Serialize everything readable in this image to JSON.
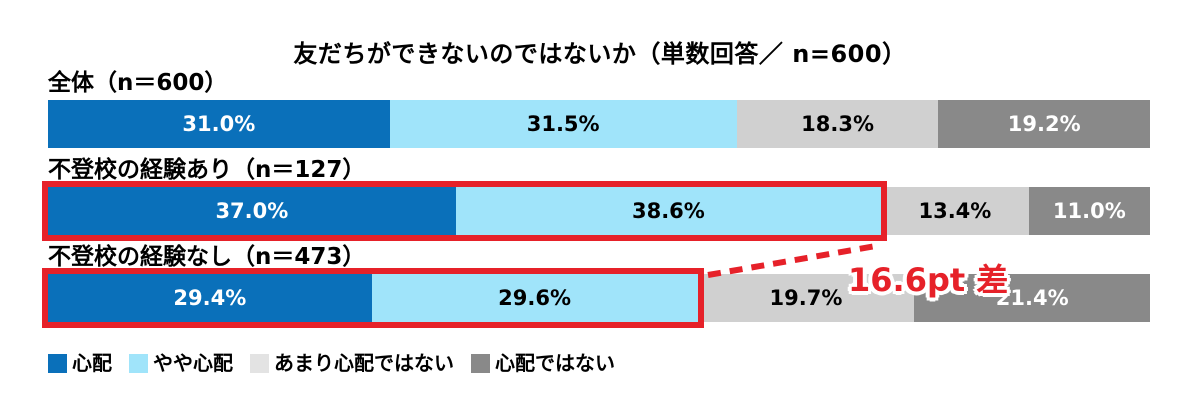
{
  "title": "友だちができないのではないか（単数回答／ n=600）",
  "chart_data": {
    "type": "bar",
    "orientation": "horizontal-stacked",
    "unit": "%",
    "xlim": [
      0,
      100
    ],
    "grid": false,
    "legend_position": "bottom",
    "series_labels": [
      "心配",
      "やや心配",
      "あまり心配ではない",
      "心配ではない"
    ],
    "segment_colors": [
      "#0a70ba",
      "#a0e4fa",
      "#d0d0d0",
      "#898989"
    ],
    "segment_text_colors": [
      "#ffffff",
      "#000000",
      "#000000",
      "#ffffff"
    ],
    "highlight_color": "#e62129",
    "rows": [
      {
        "label": "全体（n＝600）",
        "segments": [
          {
            "value": 31.0,
            "label": "31.0%"
          },
          {
            "value": 31.5,
            "label": "31.5%"
          },
          {
            "value": 18.3,
            "label": "18.3%"
          },
          {
            "value": 19.2,
            "label": "19.2%"
          }
        ],
        "highlight_span": null
      },
      {
        "label": "不登校の経験あり（n＝127）",
        "segments": [
          {
            "value": 37.0,
            "label": "37.0%"
          },
          {
            "value": 38.6,
            "label": "38.6%"
          },
          {
            "value": 13.4,
            "label": "13.4%"
          },
          {
            "value": 11.0,
            "label": "11.0%"
          }
        ],
        "highlight_span": 75.6
      },
      {
        "label": "不登校の経験なし（n＝473）",
        "segments": [
          {
            "value": 29.4,
            "label": "29.4%"
          },
          {
            "value": 29.6,
            "label": "29.6%"
          },
          {
            "value": 19.7,
            "label": "19.7%"
          },
          {
            "value": 21.4,
            "label": "21.4%"
          }
        ],
        "highlight_span": 59.0
      }
    ],
    "annotation": {
      "text": "16.6pt 差",
      "color": "#e62129"
    }
  },
  "legend": {
    "items": [
      {
        "label": "心配",
        "color": "#0a70ba"
      },
      {
        "label": "やや心配",
        "color": "#a0e4fa"
      },
      {
        "label": "あまり心配ではない",
        "color": "#e3e3e3"
      },
      {
        "label": "心配ではない",
        "color": "#898989"
      }
    ]
  }
}
